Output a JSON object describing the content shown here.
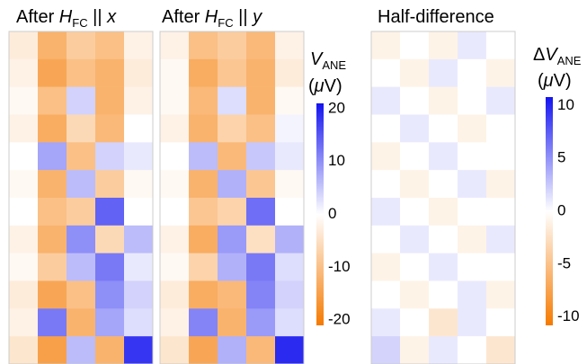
{
  "chart_data": [
    {
      "type": "heatmap",
      "title_parts": [
        "After ",
        "H",
        "FC",
        " || ",
        "x"
      ],
      "colormap": [
        "#f57a00",
        "#ffffff",
        "#1414f0"
      ],
      "zlim": [
        -21,
        21
      ],
      "values": [
        [
          -3,
          -12,
          -8,
          -10,
          -2
        ],
        [
          -2,
          -14,
          -10,
          -12,
          -3
        ],
        [
          -1,
          -10,
          4,
          -12,
          -2
        ],
        [
          -2,
          -13,
          -6,
          -11,
          0
        ],
        [
          0,
          8,
          -10,
          4,
          2
        ],
        [
          -1,
          -12,
          6,
          -8,
          -1
        ],
        [
          0,
          -10,
          -8,
          14,
          0
        ],
        [
          -2,
          -12,
          10,
          -6,
          6
        ],
        [
          -1,
          -8,
          6,
          12,
          2
        ],
        [
          -3,
          -14,
          -10,
          10,
          4
        ],
        [
          -2,
          12,
          -12,
          8,
          3
        ],
        [
          -4,
          -15,
          6,
          -12,
          18
        ]
      ]
    },
    {
      "type": "heatmap",
      "title_parts": [
        "After ",
        "H",
        "FC",
        " || ",
        "y"
      ],
      "colormap": [
        "#f57a00",
        "#ffffff",
        "#1414f0"
      ],
      "zlim": [
        -21,
        21
      ],
      "label_parts": [
        "V",
        "ANE",
        "(",
        "μ",
        "V)"
      ],
      "zticks": [
        20,
        10,
        0,
        -10,
        -20
      ],
      "values": [
        [
          -2,
          -10,
          -8,
          -11,
          -2
        ],
        [
          -1,
          -13,
          -9,
          -12,
          -3
        ],
        [
          -1,
          -11,
          3,
          -12,
          -1
        ],
        [
          -2,
          -12,
          -7,
          -10,
          1
        ],
        [
          0,
          6,
          -11,
          5,
          2
        ],
        [
          -1,
          -12,
          7,
          -9,
          -1
        ],
        [
          0,
          -9,
          -7,
          13,
          0
        ],
        [
          -2,
          -13,
          9,
          -5,
          7
        ],
        [
          -1,
          -7,
          7,
          12,
          3
        ],
        [
          -3,
          -13,
          -11,
          11,
          4
        ],
        [
          -2,
          11,
          -12,
          9,
          3
        ],
        [
          -4,
          -14,
          7,
          -11,
          19
        ]
      ]
    },
    {
      "type": "heatmap",
      "title_parts": [
        "Half-difference"
      ],
      "colormap": [
        "#f57a00",
        "#ffffff",
        "#1414f0"
      ],
      "zlim": [
        -10.8,
        10.8
      ],
      "label_parts": [
        "Δ",
        "V",
        "ANE",
        "(",
        "μ",
        "V)"
      ],
      "zticks": [
        10,
        5,
        0,
        -5,
        -10
      ],
      "values": [
        [
          -1,
          0,
          -1,
          1,
          0
        ],
        [
          0,
          -1,
          1,
          0,
          -1
        ],
        [
          1,
          0,
          -1,
          0,
          1
        ],
        [
          0,
          1,
          0,
          -1,
          0
        ],
        [
          -1,
          0,
          1,
          0,
          0
        ],
        [
          0,
          -1,
          0,
          1,
          -1
        ],
        [
          1,
          0,
          -1,
          0,
          0
        ],
        [
          0,
          1,
          0,
          -1,
          1
        ],
        [
          -1,
          0,
          1,
          0,
          0
        ],
        [
          0,
          -1,
          0,
          1,
          -1
        ],
        [
          1,
          0,
          -2,
          1,
          0
        ],
        [
          2,
          -1,
          1,
          0,
          -2
        ]
      ]
    }
  ]
}
